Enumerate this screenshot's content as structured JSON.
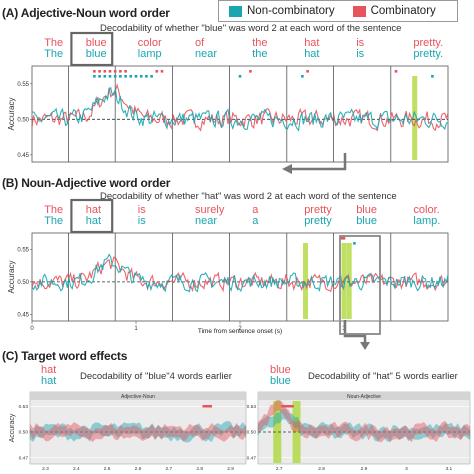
{
  "legend": {
    "items": [
      {
        "label": "Non-combinatory",
        "color": "#1aa6b0"
      },
      {
        "label": "Combinatory",
        "color": "#e8545c"
      }
    ]
  },
  "colors": {
    "red": "#e8545c",
    "teal": "#1aa6b0",
    "highlight": "#a9d62e",
    "box": "#666666"
  },
  "sectionA": {
    "title": "(A) Adjective-Noun word order",
    "subtitle": "Decodability of whether \"blue\" was word 2 at each word of the sentence",
    "red_words": [
      "The",
      "blue",
      "color",
      "of",
      "the",
      "hat",
      "is",
      "pretty."
    ],
    "teal_words": [
      "The",
      "blue",
      "lamp",
      "near",
      "the",
      "hat",
      "is",
      "pretty."
    ]
  },
  "sectionB": {
    "title": "(B) Noun-Adjective word order",
    "subtitle": "Decodability of whether \"hat\" was word 2 at each word of the sentence",
    "red_words": [
      "The",
      "hat",
      "is",
      "surely",
      "a",
      "pretty",
      "blue",
      "color."
    ],
    "teal_words": [
      "The",
      "hat",
      "is",
      "near",
      "a",
      "pretty",
      "blue",
      "lamp."
    ]
  },
  "sectionC": {
    "title": "(C) Target word effects",
    "left": {
      "red_word": "hat",
      "teal_word": "hat",
      "subtitle": "Decodability of \"blue\"4 words earlier",
      "panel_label": "Adjective-Noun"
    },
    "right": {
      "red_word": "blue",
      "teal_word": "blue",
      "subtitle": "Decodability of \"hat\" 5 words earlier",
      "panel_label": "Noun-Adjective"
    }
  },
  "chart_data": [
    {
      "type": "line",
      "panel": "A",
      "ylabel": "Accuracy",
      "yticks": [
        "0.55",
        "0.50",
        "0.45"
      ],
      "ylim": [
        0.44,
        0.575
      ],
      "xlim": [
        0,
        4.0
      ],
      "chance": 0.5,
      "word_onsets": [
        0.35,
        0.8,
        1.35,
        1.9,
        2.45,
        2.9,
        3.45
      ],
      "series": [
        {
          "name": "Non-combinatory",
          "color": "#1aa6b0",
          "peak_x": 0.75,
          "peak_y": 0.535
        },
        {
          "name": "Combinatory",
          "color": "#e8545c",
          "peak_x": 0.78,
          "peak_y": 0.54
        }
      ],
      "sig_markers": [
        {
          "color": "#e8545c",
          "x": [
            0.6,
            0.65,
            0.7,
            0.75,
            0.8,
            0.85,
            0.9,
            1.2,
            1.25,
            2.1,
            2.65,
            3.5
          ]
        },
        {
          "color": "#1aa6b0",
          "x": [
            0.6,
            0.65,
            0.7,
            0.75,
            0.8,
            0.85,
            0.9,
            0.95,
            1.0,
            1.05,
            1.1,
            1.15,
            2.0,
            2.6,
            3.85
          ]
        }
      ],
      "highlights": [
        3.68
      ]
    },
    {
      "type": "line",
      "panel": "B",
      "ylabel": "Accuracy",
      "yticks": [
        "0.55",
        "0.50",
        "0.45"
      ],
      "ylim": [
        0.44,
        0.575
      ],
      "xlabel": "Time from sentence onset (s)",
      "xticks": [
        "0",
        "1",
        "2",
        "3"
      ],
      "xlim": [
        0,
        4.0
      ],
      "chance": 0.5,
      "word_onsets": [
        0.35,
        0.8,
        1.35,
        1.9,
        2.45,
        2.9,
        3.45
      ],
      "series": [
        {
          "name": "Non-combinatory",
          "color": "#1aa6b0",
          "peak_x": 0.75,
          "peak_y": 0.53
        },
        {
          "name": "Combinatory",
          "color": "#e8545c",
          "peak_x": 0.75,
          "peak_y": 0.528
        }
      ],
      "sig_markers": [
        {
          "color": "#e8545c",
          "x": [
            2.98,
            3.0
          ]
        },
        {
          "color": "#1aa6b0",
          "x": [
            3.1
          ]
        }
      ],
      "highlights": [
        2.63,
        3.0,
        3.05
      ]
    },
    {
      "type": "line",
      "panel": "C-left",
      "ylabel": "Accuracy",
      "yticks": [
        "0.53",
        "0.50",
        "0.47"
      ],
      "xticks": [
        "2.3",
        "2.4",
        "2.5",
        "2.6",
        "2.7",
        "2.8",
        "2.9"
      ],
      "xlim": [
        2.27,
        2.93
      ],
      "chance": 0.5,
      "series": [
        {
          "name": "Non-combinatory",
          "color": "#1aa6b0"
        },
        {
          "name": "Combinatory",
          "color": "#e8545c"
        }
      ],
      "sig_markers": [
        {
          "color": "#e8545c",
          "x": [
            2.8,
            2.81,
            2.82
          ]
        }
      ]
    },
    {
      "type": "line",
      "panel": "C-right",
      "yticks": [
        "0.53",
        "0.50",
        "0.47"
      ],
      "xticks": [
        "2.7",
        "2.8",
        "2.9",
        "3",
        "3.1"
      ],
      "xlim": [
        2.68,
        3.12
      ],
      "chance": 0.5,
      "series": [
        {
          "name": "Non-combinatory",
          "color": "#1aa6b0",
          "peak_x": 2.73,
          "peak_y": 0.52
        },
        {
          "name": "Combinatory",
          "color": "#e8545c",
          "peak_x": 2.72,
          "peak_y": 0.528
        }
      ],
      "sig_markers": [
        {
          "color": "#e8545c",
          "x": [
            2.73,
            2.74,
            2.75
          ]
        }
      ],
      "highlights": [
        2.72,
        2.76
      ]
    }
  ]
}
